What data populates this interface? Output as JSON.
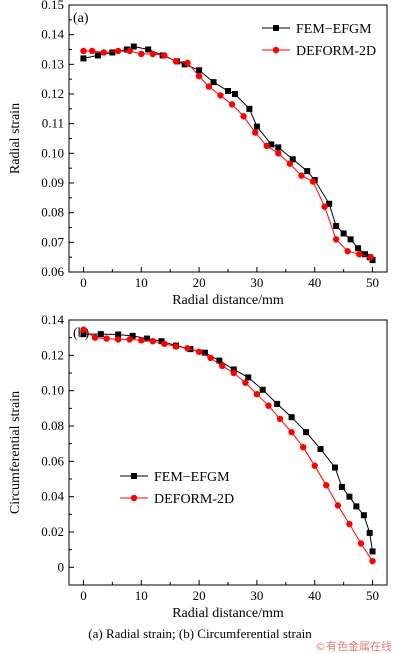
{
  "caption": "(a) Radial strain; (b) Circumferential strain",
  "watermark": "©有色金属在线",
  "colors": {
    "fem": "#000000",
    "deform": "#ff0000"
  },
  "chart_data": [
    {
      "type": "line",
      "panel_label": "(a)",
      "xlabel": "Radial distance/mm",
      "ylabel": "Radial strain",
      "xlim": [
        -2.5,
        52.5
      ],
      "ylim": [
        0.06,
        0.15
      ],
      "xticks": [
        0,
        10,
        20,
        30,
        40,
        50
      ],
      "xtick_labels": [
        "0",
        "10",
        "20",
        "30",
        "40",
        "50"
      ],
      "yticks": [
        0.06,
        0.07,
        0.08,
        0.09,
        0.1,
        0.11,
        0.12,
        0.13,
        0.14,
        0.15
      ],
      "ytick_labels": [
        "0.06",
        "0.07",
        "0.08",
        "0.09",
        "0.10",
        "0.11",
        "0.12",
        "0.13",
        "0.14",
        "0.15"
      ],
      "legend_position": "top-right",
      "grid": false,
      "series": [
        {
          "name": "FEM−EFGM",
          "marker": "square",
          "color": "#000000",
          "x": [
            0,
            2.5,
            5,
            7.5,
            8.7,
            11.2,
            13.7,
            16.2,
            17.5,
            20,
            22.5,
            25,
            26.2,
            28.7,
            30,
            32.5,
            33.7,
            36.2,
            38.7,
            40,
            42.5,
            43.7,
            45,
            46.2,
            47.5,
            48.7,
            49.5,
            50
          ],
          "y": [
            0.132,
            0.133,
            0.134,
            0.135,
            0.136,
            0.135,
            0.133,
            0.131,
            0.13,
            0.128,
            0.124,
            0.121,
            0.12,
            0.115,
            0.109,
            0.103,
            0.102,
            0.098,
            0.094,
            0.091,
            0.083,
            0.0755,
            0.073,
            0.071,
            0.068,
            0.066,
            0.065,
            0.064
          ]
        },
        {
          "name": "DEFORM-2D",
          "marker": "circle",
          "color": "#ff0000",
          "x": [
            0,
            1.5,
            3.5,
            6,
            8,
            10,
            12,
            14,
            16,
            18,
            20,
            21.7,
            23.7,
            25.7,
            27.7,
            29.7,
            31.7,
            33.7,
            35.7,
            37.7,
            39.7,
            41.7,
            43.7,
            45.7,
            47.7,
            49.7
          ],
          "y": [
            0.1345,
            0.1345,
            0.134,
            0.1345,
            0.1345,
            0.1335,
            0.1335,
            0.133,
            0.131,
            0.1305,
            0.126,
            0.1225,
            0.1195,
            0.1165,
            0.1125,
            0.107,
            0.1025,
            0.1,
            0.0965,
            0.0925,
            0.0905,
            0.082,
            0.071,
            0.067,
            0.066,
            0.065
          ]
        }
      ]
    },
    {
      "type": "line",
      "panel_label": "(b)",
      "xlabel": "Radial distance/mm",
      "ylabel": "Circumferential strain",
      "xlim": [
        -2.5,
        52.5
      ],
      "ylim": [
        -0.01,
        0.14
      ],
      "xticks": [
        0,
        10,
        20,
        30,
        40,
        50
      ],
      "xtick_labels": [
        "0",
        "10",
        "20",
        "30",
        "40",
        "50"
      ],
      "yticks": [
        0,
        0.02,
        0.04,
        0.06,
        0.08,
        0.1,
        0.12,
        0.14
      ],
      "ytick_labels": [
        "0",
        "0.02",
        "0.04",
        "0.06",
        "0.08",
        "0.10",
        "0.12",
        "0.14"
      ],
      "legend_position": "lower-left",
      "grid": false,
      "series": [
        {
          "name": "FEM−EFGM",
          "marker": "square",
          "color": "#000000",
          "x": [
            0,
            3,
            6,
            8.5,
            11,
            13.5,
            16,
            18.5,
            21,
            23.5,
            26,
            28.5,
            31,
            33.5,
            36,
            38.5,
            41,
            43.5,
            44.7,
            46,
            47.2,
            48.5,
            49.5,
            50
          ],
          "y": [
            0.132,
            0.132,
            0.1318,
            0.131,
            0.1295,
            0.128,
            0.1255,
            0.1235,
            0.1215,
            0.117,
            0.112,
            0.1075,
            0.1005,
            0.0925,
            0.085,
            0.0765,
            0.067,
            0.0565,
            0.0455,
            0.04,
            0.0345,
            0.0295,
            0.0195,
            0.009
          ]
        },
        {
          "name": "DEFORM-2D",
          "marker": "circle",
          "color": "#ff0000",
          "x": [
            0,
            2,
            4,
            6,
            8,
            10,
            12,
            14,
            16,
            18,
            20,
            22,
            24,
            26,
            28,
            30,
            32,
            34,
            36,
            38,
            40,
            42,
            44,
            46,
            48,
            50
          ],
          "y": [
            0.1345,
            0.13,
            0.1295,
            0.129,
            0.129,
            0.1285,
            0.128,
            0.1265,
            0.125,
            0.124,
            0.122,
            0.1185,
            0.114,
            0.11,
            0.1045,
            0.098,
            0.0915,
            0.084,
            0.0765,
            0.068,
            0.0575,
            0.0465,
            0.035,
            0.0245,
            0.0135,
            0.0035
          ]
        }
      ]
    }
  ]
}
